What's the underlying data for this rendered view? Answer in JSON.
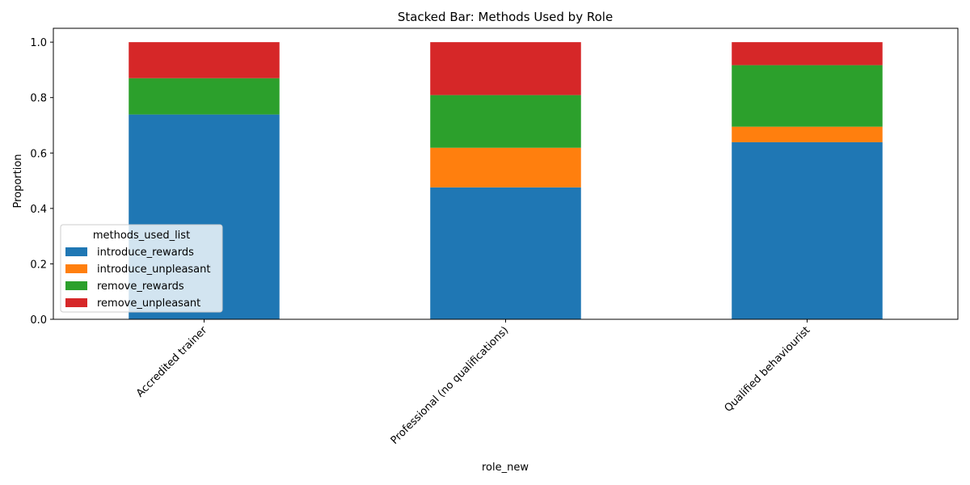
{
  "chart_data": {
    "type": "bar",
    "stacked": true,
    "title": "Stacked Bar: Methods Used by Role",
    "xlabel": "role_new",
    "ylabel": "Proportion",
    "categories": [
      "Accredited trainer",
      "Professional (no qualifications)",
      "Qualified behaviourist"
    ],
    "ylim": [
      0,
      1.05
    ],
    "yticks": [
      0.0,
      0.2,
      0.4,
      0.6,
      0.8,
      1.0
    ],
    "ytick_labels": [
      "0.0",
      "0.2",
      "0.4",
      "0.6",
      "0.8",
      "1.0"
    ],
    "grid": false,
    "legend": {
      "title": "methods_used_list",
      "placement": "lower-left"
    },
    "series": [
      {
        "name": "introduce_rewards",
        "color": "#1f77b4",
        "values": [
          0.739,
          0.476,
          0.639
        ]
      },
      {
        "name": "introduce_unpleasant",
        "color": "#ff7f0e",
        "values": [
          0.0,
          0.143,
          0.056
        ]
      },
      {
        "name": "remove_rewards",
        "color": "#2ca02c",
        "values": [
          0.131,
          0.19,
          0.222
        ]
      },
      {
        "name": "remove_unpleasant",
        "color": "#d62728",
        "values": [
          0.13,
          0.191,
          0.083
        ]
      }
    ]
  }
}
